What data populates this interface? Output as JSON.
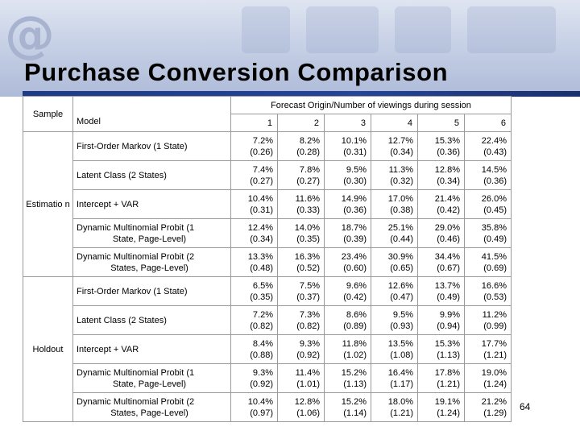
{
  "slide": {
    "title": "Purchase Conversion Comparison",
    "page_number": "64",
    "banner_icon": "at-sign-icon"
  },
  "table": {
    "header_sample": "Sample",
    "header_model": "Model",
    "header_span": "Forecast Origin/Number of viewings during session",
    "columns": [
      "1",
      "2",
      "3",
      "4",
      "5",
      "6"
    ],
    "groups": [
      {
        "label": "Estimatio n",
        "rows": [
          {
            "model": "First-Order Markov (1 State)",
            "values": [
              [
                "7.2%",
                "(0.26)"
              ],
              [
                "8.2%",
                "(0.28)"
              ],
              [
                "10.1%",
                "(0.31)"
              ],
              [
                "12.7%",
                "(0.34)"
              ],
              [
                "15.3%",
                "(0.36)"
              ],
              [
                "22.4%",
                "(0.43)"
              ]
            ]
          },
          {
            "model": "Latent Class (2 States)",
            "values": [
              [
                "7.4%",
                "(0.27)"
              ],
              [
                "7.8%",
                "(0.27)"
              ],
              [
                "9.5%",
                "(0.30)"
              ],
              [
                "11.3%",
                "(0.32)"
              ],
              [
                "12.8%",
                "(0.34)"
              ],
              [
                "14.5%",
                "(0.36)"
              ]
            ]
          },
          {
            "model": "Intercept + VAR",
            "values": [
              [
                "10.4%",
                "(0.31)"
              ],
              [
                "11.6%",
                "(0.33)"
              ],
              [
                "14.9%",
                "(0.36)"
              ],
              [
                "17.0%",
                "(0.38)"
              ],
              [
                "21.4%",
                "(0.42)"
              ],
              [
                "26.0%",
                "(0.45)"
              ]
            ]
          },
          {
            "model": "Dynamic Multinomial Probit (1",
            "model2": "State, Page-Level)",
            "values": [
              [
                "12.4%",
                "(0.34)"
              ],
              [
                "14.0%",
                "(0.35)"
              ],
              [
                "18.7%",
                "(0.39)"
              ],
              [
                "25.1%",
                "(0.44)"
              ],
              [
                "29.0%",
                "(0.46)"
              ],
              [
                "35.8%",
                "(0.49)"
              ]
            ]
          },
          {
            "model": "Dynamic Multinomial Probit (2",
            "model2": "States, Page-Level)",
            "values": [
              [
                "13.3%",
                "(0.48)"
              ],
              [
                "16.3%",
                "(0.52)"
              ],
              [
                "23.4%",
                "(0.60)"
              ],
              [
                "30.9%",
                "(0.65)"
              ],
              [
                "34.4%",
                "(0.67)"
              ],
              [
                "41.5%",
                "(0.69)"
              ]
            ]
          }
        ]
      },
      {
        "label": "Holdout",
        "rows": [
          {
            "model": "First-Order Markov (1 State)",
            "values": [
              [
                "6.5%",
                "(0.35)"
              ],
              [
                "7.5%",
                "(0.37)"
              ],
              [
                "9.6%",
                "(0.42)"
              ],
              [
                "12.6%",
                "(0.47)"
              ],
              [
                "13.7%",
                "(0.49)"
              ],
              [
                "16.6%",
                "(0.53)"
              ]
            ]
          },
          {
            "model": "Latent Class (2 States)",
            "values": [
              [
                "7.2%",
                "(0.82)"
              ],
              [
                "7.3%",
                "(0.82)"
              ],
              [
                "8.6%",
                "(0.89)"
              ],
              [
                "9.5%",
                "(0.93)"
              ],
              [
                "9.9%",
                "(0.94)"
              ],
              [
                "11.2%",
                "(0.99)"
              ]
            ]
          },
          {
            "model": "Intercept + VAR",
            "values": [
              [
                "8.4%",
                "(0.88)"
              ],
              [
                "9.3%",
                "(0.92)"
              ],
              [
                "11.8%",
                "(1.02)"
              ],
              [
                "13.5%",
                "(1.08)"
              ],
              [
                "15.3%",
                "(1.13)"
              ],
              [
                "17.7%",
                "(1.21)"
              ]
            ]
          },
          {
            "model": "Dynamic Multinomial Probit (1",
            "model2": "State, Page-Level)",
            "values": [
              [
                "9.3%",
                "(0.92)"
              ],
              [
                "11.4%",
                "(1.01)"
              ],
              [
                "15.2%",
                "(1.13)"
              ],
              [
                "16.4%",
                "(1.17)"
              ],
              [
                "17.8%",
                "(1.21)"
              ],
              [
                "19.0%",
                "(1.24)"
              ]
            ]
          },
          {
            "model": "Dynamic Multinomial Probit (2",
            "model2": "States, Page-Level)",
            "values": [
              [
                "10.4%",
                "(0.97)"
              ],
              [
                "12.8%",
                "(1.06)"
              ],
              [
                "15.2%",
                "(1.14)"
              ],
              [
                "18.0%",
                "(1.21)"
              ],
              [
                "19.1%",
                "(1.24)"
              ],
              [
                "21.2%",
                "(1.29)"
              ]
            ]
          }
        ]
      }
    ]
  }
}
